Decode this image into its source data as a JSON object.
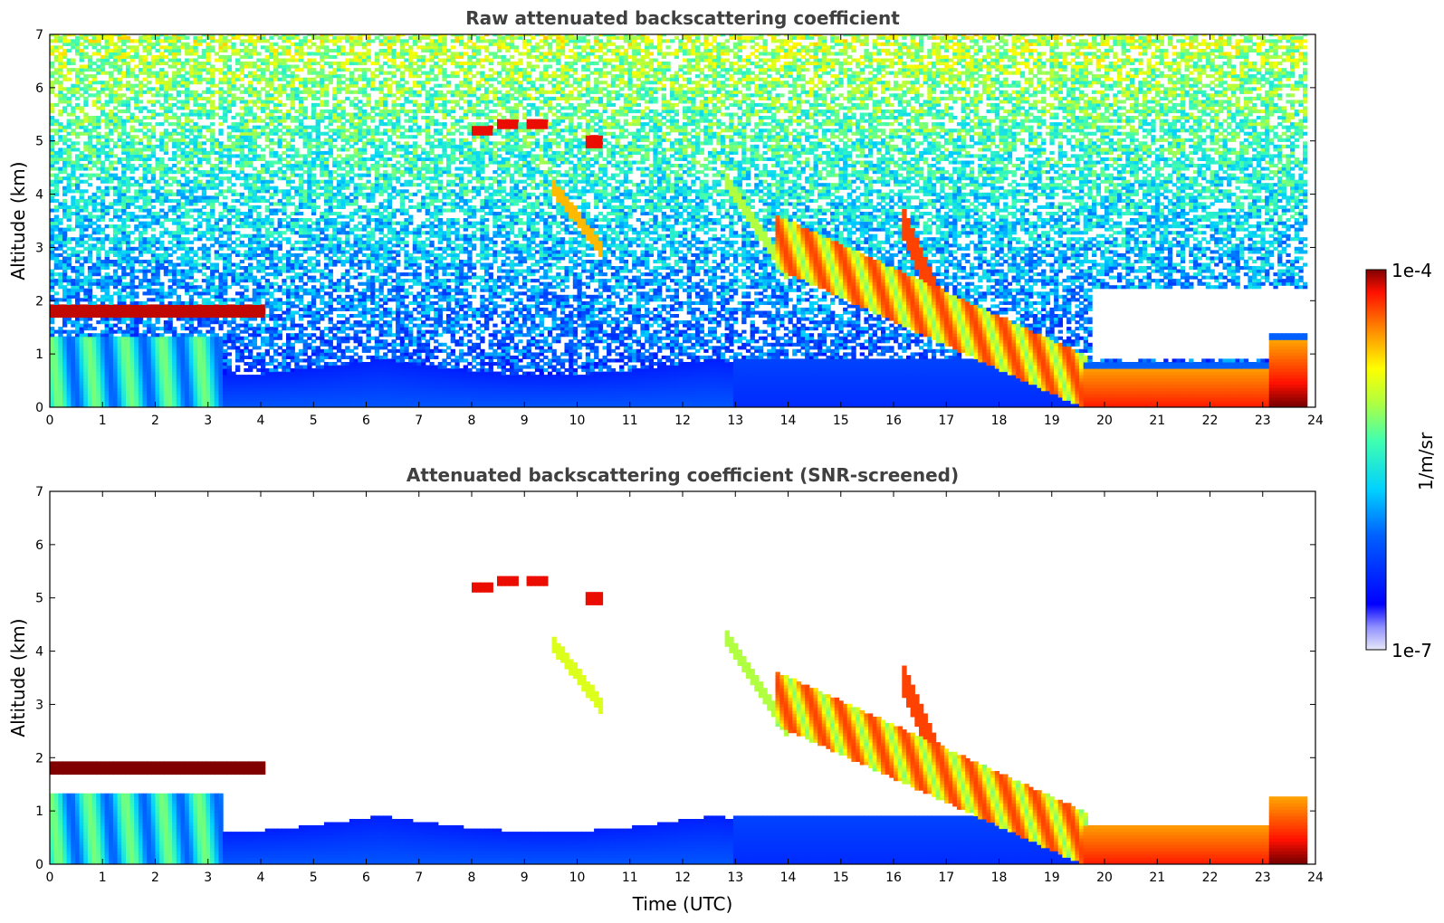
{
  "chart_data": [
    {
      "type": "heatmap",
      "title": "Raw attenuated backscattering coefficient",
      "xlabel": "",
      "ylabel": "Altitude (km)",
      "xlim": [
        0,
        24
      ],
      "ylim": [
        0,
        7
      ],
      "xticks": [
        0,
        1,
        2,
        3,
        4,
        5,
        6,
        7,
        8,
        9,
        10,
        11,
        12,
        13,
        14,
        15,
        16,
        17,
        18,
        19,
        20,
        21,
        22,
        23,
        24
      ],
      "yticks": [
        0,
        1,
        2,
        3,
        4,
        5,
        6,
        7
      ],
      "screened": false
    },
    {
      "type": "heatmap",
      "title": "Attenuated backscattering coefficient (SNR-screened)",
      "xlabel": "Time (UTC)",
      "ylabel": "Altitude (km)",
      "xlim": [
        0,
        24
      ],
      "ylim": [
        0,
        7
      ],
      "xticks": [
        0,
        1,
        2,
        3,
        4,
        5,
        6,
        7,
        8,
        9,
        10,
        11,
        12,
        13,
        14,
        15,
        16,
        17,
        18,
        19,
        20,
        21,
        22,
        23,
        24
      ],
      "yticks": [
        0,
        1,
        2,
        3,
        4,
        5,
        6,
        7
      ],
      "screened": true
    }
  ],
  "colorbar": {
    "label": "1/m/sr",
    "max_label": "1e-4",
    "min_label": "1e-7",
    "min_value": 1e-07,
    "max_value": 0.0001,
    "scale": "log",
    "colormap": "jet"
  },
  "features": {
    "low_cloud_layer": {
      "t_start": 0,
      "t_end": 4.1,
      "alt_km": 1.8
    },
    "mid_cloud_patches": [
      {
        "t": 8.2,
        "alt_km": 5.2
      },
      {
        "t": 8.7,
        "alt_km": 5.3
      },
      {
        "t": 9.2,
        "alt_km": 5.35
      },
      {
        "t": 10.3,
        "alt_km": 5.0
      }
    ],
    "precipitation_band": {
      "t_start": 13.0,
      "t_end": 19.6
    },
    "boundary_layer_evening": {
      "t_start": 19.7,
      "t_end": 23.8,
      "top_km": 0.75
    }
  }
}
